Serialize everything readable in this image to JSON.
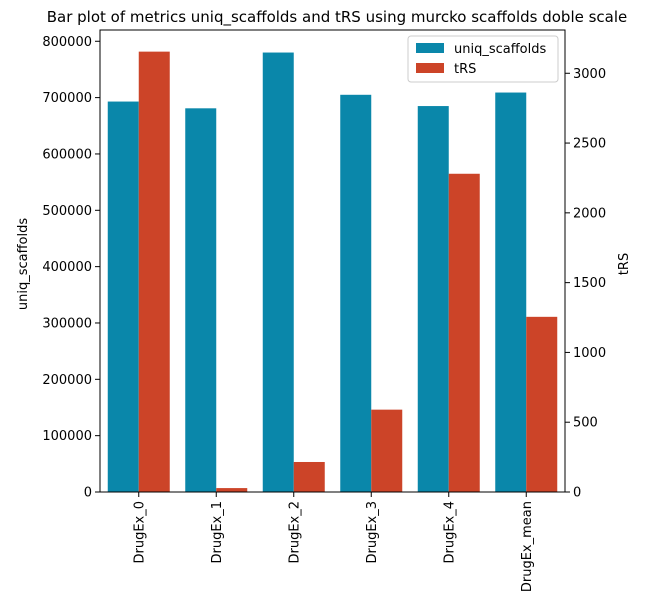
{
  "chart_data": {
    "type": "bar",
    "title": "Bar plot of metrics uniq_scaffolds and tRS using murcko scaffolds doble scale",
    "categories": [
      "DrugEx_0",
      "DrugEx_1",
      "DrugEx_2",
      "DrugEx_3",
      "DrugEx_4",
      "DrugEx_mean"
    ],
    "series": [
      {
        "name": "uniq_scaffolds",
        "axis": "left",
        "color": "#0a87aa",
        "values": [
          693000,
          681000,
          780000,
          705000,
          685000,
          709000
        ]
      },
      {
        "name": "tRS",
        "axis": "right",
        "color": "#cc4428",
        "values": [
          3155,
          28,
          215,
          590,
          2280,
          1255
        ]
      }
    ],
    "ylabel": "uniq_scaffolds",
    "ylabel_right": "tRS",
    "ylim": [
      0,
      820000
    ],
    "ylim_right": [
      0,
      3310
    ],
    "yticks": [
      "0",
      "100000",
      "200000",
      "300000",
      "400000",
      "500000",
      "600000",
      "700000",
      "800000"
    ],
    "yticks_right": [
      "0",
      "500",
      "1000",
      "1500",
      "2000",
      "2500",
      "3000"
    ],
    "legend": "top-right",
    "grid": false
  }
}
